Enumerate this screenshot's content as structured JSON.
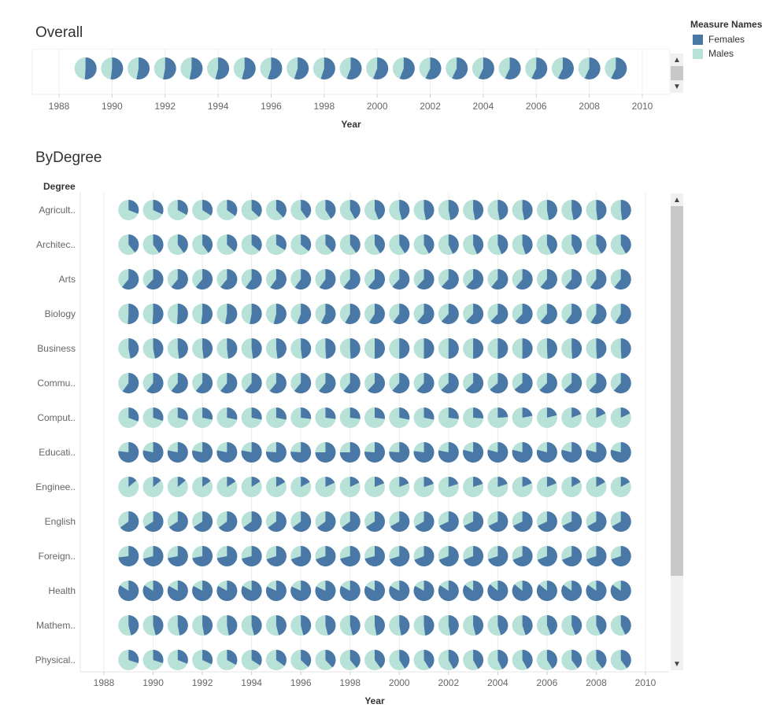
{
  "colors": {
    "females": "#4a78a6",
    "males": "#b8e2d8",
    "grid": "#ececec",
    "axis_text": "#666666"
  },
  "legend": {
    "title": "Measure Names",
    "items": [
      {
        "label": "Females",
        "color": "#4a78a6"
      },
      {
        "label": "Males",
        "color": "#b8e2d8"
      }
    ]
  },
  "scroll_icons": {
    "up": "▲",
    "down": "▼"
  },
  "chart_data": [
    {
      "type": "pie",
      "title": "Overall",
      "xlabel": "Year",
      "x_ticks": [
        1988,
        1990,
        1992,
        1994,
        1996,
        1998,
        2000,
        2002,
        2004,
        2006,
        2008,
        2010
      ],
      "years": [
        1989,
        1990,
        1991,
        1992,
        1993,
        1994,
        1995,
        1996,
        1997,
        1998,
        1999,
        2000,
        2001,
        2002,
        2003,
        2004,
        2005,
        2006,
        2007,
        2008,
        2009
      ],
      "female_share": [
        0.51,
        0.52,
        0.53,
        0.53,
        0.53,
        0.54,
        0.54,
        0.55,
        0.55,
        0.55,
        0.56,
        0.56,
        0.56,
        0.57,
        0.57,
        0.57,
        0.57,
        0.57,
        0.57,
        0.57,
        0.57
      ]
    },
    {
      "type": "pie",
      "title": "ByDegree",
      "xlabel": "Year",
      "row_header": "Degree",
      "x_ticks": [
        1988,
        1990,
        1992,
        1994,
        1996,
        1998,
        2000,
        2002,
        2004,
        2006,
        2008,
        2010
      ],
      "years": [
        1989,
        1990,
        1991,
        1992,
        1993,
        1994,
        1995,
        1996,
        1997,
        1998,
        1999,
        2000,
        2001,
        2002,
        2003,
        2004,
        2005,
        2006,
        2007,
        2008,
        2009
      ],
      "rows": [
        {
          "degree": "Agricult..",
          "female_share": [
            0.31,
            0.32,
            0.33,
            0.34,
            0.35,
            0.37,
            0.38,
            0.4,
            0.41,
            0.42,
            0.44,
            0.46,
            0.47,
            0.47,
            0.47,
            0.47,
            0.47,
            0.47,
            0.47,
            0.48,
            0.48
          ]
        },
        {
          "degree": "Architec..",
          "female_share": [
            0.39,
            0.4,
            0.4,
            0.4,
            0.37,
            0.36,
            0.34,
            0.36,
            0.38,
            0.4,
            0.41,
            0.41,
            0.42,
            0.43,
            0.44,
            0.44,
            0.45,
            0.43,
            0.43,
            0.42,
            0.42
          ]
        },
        {
          "degree": "Arts",
          "female_share": [
            0.61,
            0.62,
            0.61,
            0.61,
            0.61,
            0.6,
            0.6,
            0.6,
            0.6,
            0.61,
            0.61,
            0.62,
            0.62,
            0.62,
            0.62,
            0.61,
            0.61,
            0.61,
            0.61,
            0.6,
            0.61
          ]
        },
        {
          "degree": "Biology",
          "female_share": [
            0.51,
            0.51,
            0.51,
            0.52,
            0.53,
            0.53,
            0.54,
            0.56,
            0.57,
            0.58,
            0.59,
            0.6,
            0.61,
            0.62,
            0.62,
            0.62,
            0.62,
            0.61,
            0.6,
            0.59,
            0.59
          ]
        },
        {
          "degree": "Business",
          "female_share": [
            0.47,
            0.47,
            0.48,
            0.48,
            0.48,
            0.48,
            0.48,
            0.48,
            0.49,
            0.49,
            0.5,
            0.5,
            0.5,
            0.5,
            0.5,
            0.5,
            0.5,
            0.49,
            0.49,
            0.49,
            0.49
          ]
        },
        {
          "degree": "Commu..",
          "female_share": [
            0.6,
            0.61,
            0.61,
            0.61,
            0.61,
            0.61,
            0.61,
            0.61,
            0.61,
            0.61,
            0.62,
            0.62,
            0.62,
            0.63,
            0.63,
            0.64,
            0.64,
            0.63,
            0.63,
            0.62,
            0.62
          ]
        },
        {
          "degree": "Comput..",
          "female_share": [
            0.31,
            0.3,
            0.29,
            0.28,
            0.28,
            0.28,
            0.28,
            0.27,
            0.27,
            0.27,
            0.27,
            0.28,
            0.28,
            0.27,
            0.26,
            0.24,
            0.22,
            0.21,
            0.19,
            0.18,
            0.18
          ]
        },
        {
          "degree": "Educati..",
          "female_share": [
            0.77,
            0.78,
            0.78,
            0.78,
            0.78,
            0.78,
            0.76,
            0.76,
            0.75,
            0.75,
            0.76,
            0.76,
            0.77,
            0.78,
            0.79,
            0.79,
            0.79,
            0.79,
            0.79,
            0.79,
            0.79
          ]
        },
        {
          "degree": "Enginee..",
          "female_share": [
            0.14,
            0.14,
            0.14,
            0.15,
            0.16,
            0.16,
            0.17,
            0.17,
            0.18,
            0.18,
            0.19,
            0.19,
            0.2,
            0.2,
            0.2,
            0.2,
            0.19,
            0.19,
            0.17,
            0.17,
            0.17
          ]
        },
        {
          "degree": "English",
          "female_share": [
            0.65,
            0.66,
            0.66,
            0.66,
            0.65,
            0.65,
            0.65,
            0.65,
            0.65,
            0.65,
            0.66,
            0.67,
            0.67,
            0.68,
            0.68,
            0.68,
            0.68,
            0.68,
            0.68,
            0.67,
            0.67
          ]
        },
        {
          "degree": "Foreign..",
          "female_share": [
            0.73,
            0.71,
            0.72,
            0.72,
            0.72,
            0.71,
            0.7,
            0.7,
            0.7,
            0.71,
            0.71,
            0.7,
            0.69,
            0.69,
            0.69,
            0.7,
            0.69,
            0.69,
            0.69,
            0.7,
            0.7
          ]
        },
        {
          "degree": "Health",
          "female_share": [
            0.84,
            0.84,
            0.83,
            0.83,
            0.83,
            0.83,
            0.82,
            0.82,
            0.82,
            0.83,
            0.83,
            0.83,
            0.83,
            0.84,
            0.85,
            0.86,
            0.86,
            0.86,
            0.85,
            0.85,
            0.85
          ]
        },
        {
          "degree": "Mathem..",
          "female_share": [
            0.46,
            0.46,
            0.47,
            0.47,
            0.47,
            0.46,
            0.46,
            0.46,
            0.46,
            0.46,
            0.47,
            0.47,
            0.48,
            0.47,
            0.46,
            0.45,
            0.45,
            0.44,
            0.44,
            0.43,
            0.43
          ]
        },
        {
          "degree": "Physical..",
          "female_share": [
            0.3,
            0.3,
            0.31,
            0.32,
            0.33,
            0.34,
            0.35,
            0.37,
            0.38,
            0.39,
            0.4,
            0.41,
            0.41,
            0.42,
            0.42,
            0.43,
            0.42,
            0.41,
            0.4,
            0.4,
            0.4
          ]
        }
      ]
    }
  ]
}
